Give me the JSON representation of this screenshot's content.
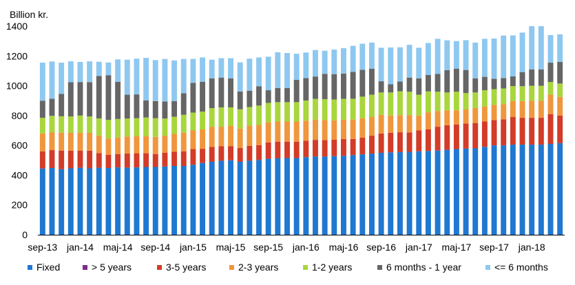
{
  "chart_data": {
    "type": "bar",
    "stacked": true,
    "ylabel": "Billion kr.",
    "ylim": [
      0,
      1400
    ],
    "yticks": [
      0,
      200,
      400,
      600,
      800,
      1000,
      1200,
      1400
    ],
    "grid": false,
    "legend_position": "bottom",
    "x_tick_labels": [
      "sep-13",
      "jan-14",
      "maj-14",
      "sep-14",
      "jan-15",
      "maj-15",
      "sep-15",
      "jan-16",
      "maj-16",
      "sep-16",
      "jan-17",
      "maj-17",
      "sep-17",
      "jan-18"
    ],
    "x_tick_every": 4,
    "categories": [
      "sep-13",
      "okt-13",
      "nov-13",
      "dec-13",
      "jan-14",
      "feb-14",
      "mar-14",
      "apr-14",
      "maj-14",
      "jun-14",
      "jul-14",
      "aug-14",
      "sep-14",
      "okt-14",
      "nov-14",
      "dec-14",
      "jan-15",
      "feb-15",
      "mar-15",
      "apr-15",
      "maj-15",
      "jun-15",
      "jul-15",
      "aug-15",
      "sep-15",
      "okt-15",
      "nov-15",
      "dec-15",
      "jan-16",
      "feb-16",
      "mar-16",
      "apr-16",
      "maj-16",
      "jun-16",
      "jul-16",
      "aug-16",
      "sep-16",
      "okt-16",
      "nov-16",
      "dec-16",
      "jan-17",
      "feb-17",
      "mar-17",
      "apr-17",
      "maj-17",
      "jun-17",
      "jul-17",
      "aug-17",
      "sep-17",
      "okt-17",
      "nov-17",
      "dec-17",
      "jan-18",
      "feb-18",
      "mar-18",
      "apr-18"
    ],
    "series": [
      {
        "name": "Fixed",
        "color": "#1f78d1",
        "values": [
          445,
          448,
          440,
          446,
          450,
          446,
          450,
          448,
          452,
          450,
          452,
          455,
          455,
          458,
          462,
          462,
          470,
          482,
          490,
          497,
          500,
          490,
          497,
          502,
          510,
          513,
          515,
          515,
          521,
          525,
          525,
          528,
          530,
          535,
          540,
          545,
          550,
          553,
          555,
          557,
          560,
          562,
          565,
          570,
          575,
          578,
          580,
          590,
          600,
          600,
          605,
          605,
          605,
          605,
          610,
          615
        ]
      },
      {
        "name": "> 5 years",
        "color": "#7b2c8c",
        "values": [
          0,
          0,
          0,
          0,
          0,
          0,
          0,
          0,
          0,
          0,
          0,
          0,
          0,
          0,
          0,
          0,
          0,
          0,
          0,
          0,
          0,
          0,
          0,
          0,
          0,
          0,
          0,
          0,
          0,
          0,
          0,
          0,
          0,
          0,
          0,
          0,
          0,
          0,
          0,
          0,
          0,
          0,
          0,
          0,
          0,
          0,
          0,
          0,
          0,
          0,
          0,
          0,
          0,
          0,
          0,
          0
        ]
      },
      {
        "name": "3-5 years",
        "color": "#d23c28",
        "values": [
          115,
          120,
          125,
          118,
          115,
          118,
          98,
          88,
          90,
          95,
          95,
          92,
          87,
          92,
          95,
          98,
          105,
          95,
          100,
          98,
          95,
          92,
          100,
          100,
          110,
          112,
          110,
          110,
          110,
          112,
          110,
          110,
          112,
          108,
          112,
          120,
          130,
          132,
          133,
          130,
          140,
          145,
          160,
          165,
          165,
          168,
          170,
          170,
          170,
          175,
          185,
          180,
          180,
          180,
          200,
          185
        ]
      },
      {
        "name": "2-3 years",
        "color": "#f0963c",
        "values": [
          120,
          120,
          120,
          120,
          120,
          120,
          118,
          110,
          110,
          115,
          115,
          115,
          115,
          115,
          120,
          125,
          125,
          130,
          135,
          130,
          135,
          130,
          135,
          135,
          135,
          135,
          135,
          135,
          135,
          135,
          135,
          130,
          130,
          130,
          130,
          125,
          125,
          115,
          115,
          115,
          100,
          115,
          105,
          100,
          95,
          95,
          100,
          100,
          102,
          102,
          108,
          112,
          115,
          115,
          130,
          125
        ]
      },
      {
        "name": "1-2 years",
        "color": "#a8d63c",
        "values": [
          105,
          110,
          110,
          110,
          115,
          110,
          115,
          125,
          125,
          120,
          120,
          125,
          125,
          115,
          115,
          120,
          120,
          120,
          125,
          130,
          125,
          130,
          125,
          130,
          130,
          130,
          130,
          130,
          135,
          140,
          140,
          140,
          140,
          140,
          145,
          150,
          150,
          155,
          160,
          158,
          140,
          140,
          130,
          120,
          125,
          110,
          105,
          110,
          105,
          105,
          100,
          100,
          100,
          100,
          85,
          90
        ]
      },
      {
        "name": "6 months - 1 year",
        "color": "#666666",
        "values": [
          115,
          115,
          150,
          230,
          225,
          230,
          285,
          300,
          250,
          160,
          160,
          115,
          115,
          115,
          105,
          145,
          200,
          200,
          200,
          200,
          195,
          120,
          110,
          130,
          85,
          95,
          95,
          150,
          150,
          150,
          170,
          170,
          170,
          180,
          180,
          175,
          75,
          55,
          65,
          95,
          110,
          110,
          120,
          150,
          155,
          155,
          95,
          90,
          70,
          70,
          65,
          95,
          110,
          110,
          130,
          145
        ]
      },
      {
        "name": "<= 6 months",
        "color": "#8ec8f0",
        "values": [
          255,
          250,
          210,
          140,
          135,
          140,
          95,
          85,
          150,
          235,
          240,
          285,
          275,
          285,
          273,
          230,
          160,
          163,
          125,
          130,
          135,
          195,
          215,
          193,
          225,
          240,
          235,
          175,
          172,
          178,
          155,
          165,
          170,
          175,
          175,
          175,
          225,
          247,
          230,
          220,
          205,
          215,
          235,
          200,
          185,
          200,
          240,
          255,
          270,
          285,
          275,
          265,
          290,
          290,
          185,
          185
        ]
      }
    ]
  },
  "legend": [
    {
      "label": "Fixed",
      "color": "#1f78d1"
    },
    {
      "label": "> 5 years",
      "color": "#7b2c8c"
    },
    {
      "label": "3-5 years",
      "color": "#d23c28"
    },
    {
      "label": "2-3 years",
      "color": "#f0963c"
    },
    {
      "label": "1-2 years",
      "color": "#a8d63c"
    },
    {
      "label": "6 months - 1 year",
      "color": "#666666"
    },
    {
      "label": "<= 6 months",
      "color": "#8ec8f0"
    }
  ]
}
